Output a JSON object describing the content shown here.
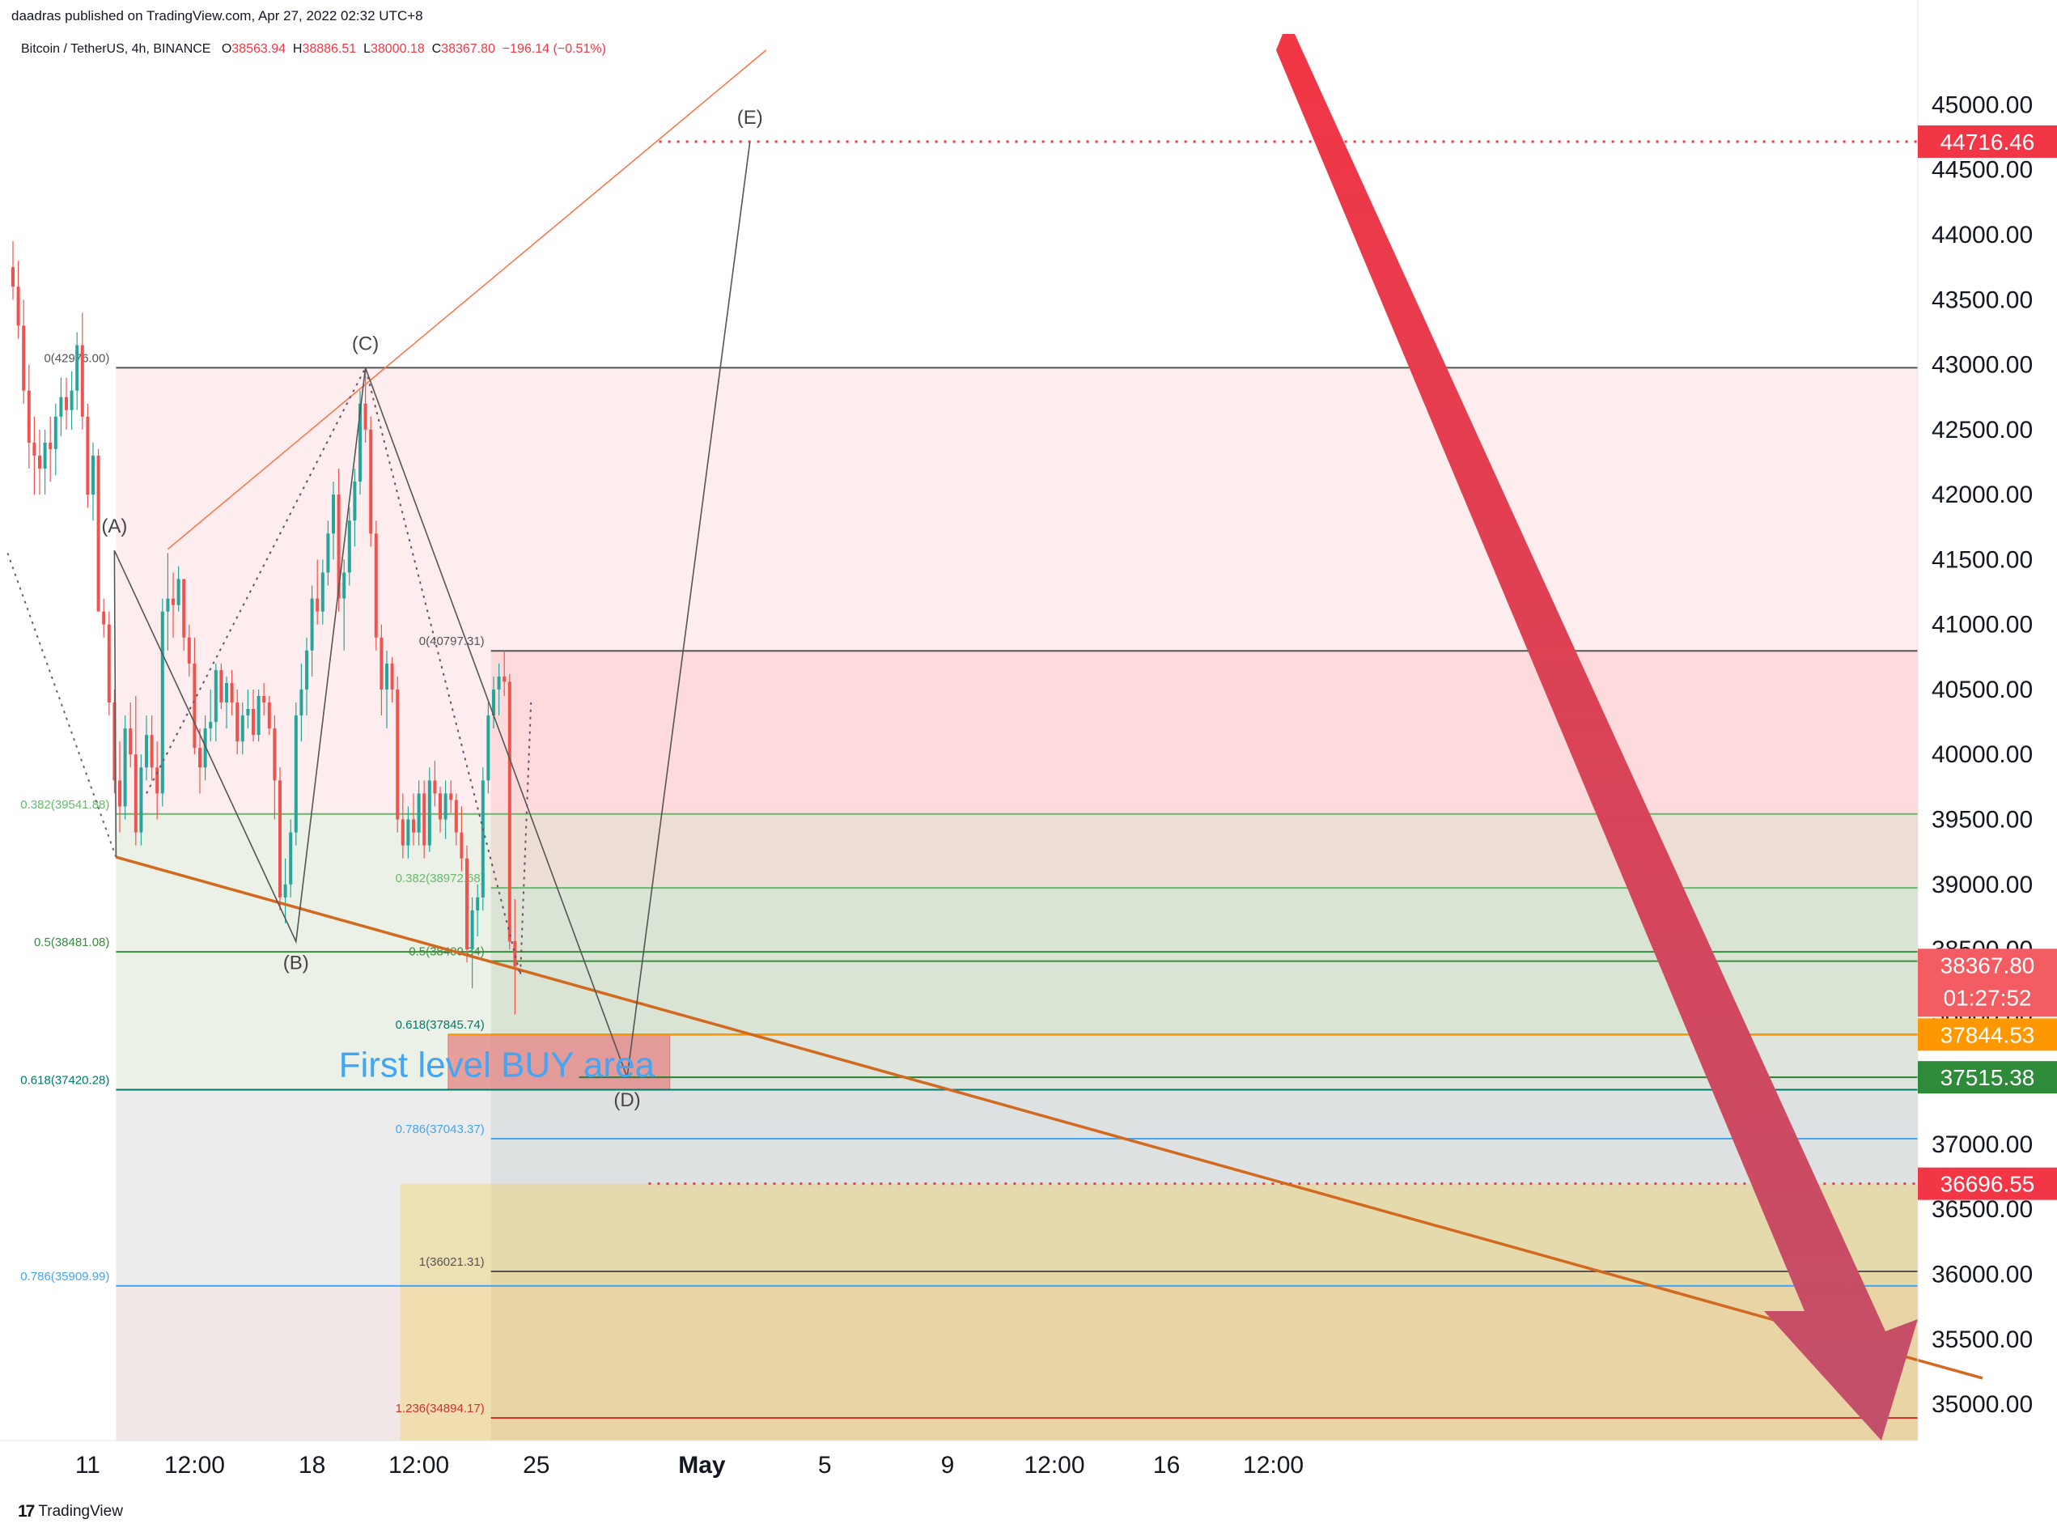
{
  "publisher": "daadras published on TradingView.com, Apr 27, 2022 02:32 UTC+8",
  "footer": {
    "logo": "17",
    "brand": "TradingView"
  },
  "chart_data": {
    "type": "candlestick",
    "symbol": "Bitcoin / TetherUS, 4h, BINANCE",
    "ohlc_label": {
      "o_label": "O",
      "o": "38563.94",
      "h_label": "H",
      "h": "38886.51",
      "l_label": "L",
      "l": "38000.18",
      "c_label": "C",
      "c": "38367.80",
      "change": "−196.14 (−0.51%)"
    },
    "y_ticks": [
      45000,
      44500,
      44000,
      43500,
      43000,
      42500,
      42000,
      41500,
      41000,
      40500,
      40000,
      39500,
      39000,
      38500,
      38000,
      37500,
      37000,
      36500,
      36000,
      35500,
      35000
    ],
    "y_tick_labels": [
      "45000.00",
      "44500.00",
      "44000.00",
      "43500.00",
      "43000.00",
      "42500.00",
      "42000.00",
      "41500.00",
      "41000.00",
      "40500.00",
      "40000.00",
      "39500.00",
      "39000.00",
      "38500.00",
      "38000.00",
      "37500.00",
      "37000.00",
      "36500.00",
      "36000.00",
      "35500.00",
      "35000.00"
    ],
    "ylim": [
      34720,
      45420
    ],
    "x_ticks": [
      {
        "label": "11",
        "slot": 14
      },
      {
        "label": "12:00",
        "slot": 34
      },
      {
        "label": "18",
        "slot": 56
      },
      {
        "label": "12:00",
        "slot": 76
      },
      {
        "label": "25",
        "slot": 98
      },
      {
        "label": "May",
        "slot": 129
      },
      {
        "label": "5",
        "slot": 152
      },
      {
        "label": "9",
        "slot": 175
      },
      {
        "label": "12:00",
        "slot": 195
      },
      {
        "label": "16",
        "slot": 216
      },
      {
        "label": "12:00",
        "slot": 236
      }
    ],
    "candles": [
      [
        43750,
        43950,
        43500,
        43600
      ],
      [
        43600,
        43800,
        43200,
        43300
      ],
      [
        43300,
        43500,
        42700,
        42800
      ],
      [
        42800,
        43000,
        42200,
        42400
      ],
      [
        42400,
        42600,
        42000,
        42300
      ],
      [
        42300,
        42500,
        42000,
        42200
      ],
      [
        42200,
        42500,
        42000,
        42400
      ],
      [
        42400,
        42600,
        42100,
        42350
      ],
      [
        42350,
        42700,
        42150,
        42600
      ],
      [
        42600,
        42900,
        42450,
        42750
      ],
      [
        42750,
        42900,
        42500,
        42650
      ],
      [
        42650,
        42950,
        42500,
        42800
      ],
      [
        42800,
        43250,
        42650,
        43150
      ],
      [
        43150,
        43400,
        42500,
        42600
      ],
      [
        42600,
        42700,
        41900,
        42000
      ],
      [
        42000,
        42400,
        41800,
        42300
      ],
      [
        42300,
        42350,
        41200,
        41100
      ],
      [
        41100,
        41200,
        40900,
        41000
      ],
      [
        41000,
        41100,
        40300,
        40400
      ],
      [
        40400,
        40500,
        39700,
        39800
      ],
      [
        39800,
        40100,
        39400,
        39600
      ],
      [
        39600,
        40300,
        39500,
        40200
      ],
      [
        40200,
        40400,
        39900,
        40000
      ],
      [
        40000,
        40450,
        39300,
        39400
      ],
      [
        39400,
        40000,
        39300,
        39900
      ],
      [
        39900,
        40300,
        39800,
        40150
      ],
      [
        40150,
        40300,
        39800,
        39900
      ],
      [
        39900,
        40100,
        39500,
        39700
      ],
      [
        39700,
        41200,
        39600,
        41100
      ],
      [
        41100,
        41550,
        40800,
        41200
      ],
      [
        41200,
        41400,
        40900,
        41150
      ],
      [
        41150,
        41450,
        41100,
        41350
      ],
      [
        41350,
        41350,
        40800,
        40900
      ],
      [
        40900,
        41000,
        40600,
        40700
      ],
      [
        40700,
        40900,
        40000,
        40050
      ],
      [
        40050,
        40200,
        39700,
        39900
      ],
      [
        39900,
        40300,
        39800,
        40200
      ],
      [
        40200,
        40500,
        40100,
        40250
      ],
      [
        40250,
        40700,
        40100,
        40650
      ],
      [
        40650,
        40700,
        40350,
        40400
      ],
      [
        40400,
        40600,
        40200,
        40550
      ],
      [
        40550,
        40650,
        40300,
        40400
      ],
      [
        40400,
        40500,
        40000,
        40100
      ],
      [
        40100,
        40400,
        40000,
        40300
      ],
      [
        40300,
        40500,
        40200,
        40350
      ],
      [
        40350,
        40500,
        40100,
        40150
      ],
      [
        40150,
        40500,
        40100,
        40450
      ],
      [
        40450,
        40550,
        40300,
        40400
      ],
      [
        40400,
        40450,
        40150,
        40200
      ],
      [
        40200,
        40300,
        39500,
        39800
      ],
      [
        39800,
        39900,
        38800,
        38900
      ],
      [
        38900,
        39200,
        38700,
        39000
      ],
      [
        39000,
        39500,
        38900,
        39400
      ],
      [
        39400,
        40400,
        39300,
        40300
      ],
      [
        40300,
        40700,
        40100,
        40500
      ],
      [
        40500,
        40900,
        40300,
        40800
      ],
      [
        40800,
        41300,
        40600,
        41200
      ],
      [
        41200,
        41500,
        41000,
        41100
      ],
      [
        41100,
        41500,
        41000,
        41400
      ],
      [
        41400,
        41800,
        41300,
        41700
      ],
      [
        41700,
        42100,
        41500,
        42000
      ],
      [
        42000,
        42200,
        41100,
        41200
      ],
      [
        41200,
        41500,
        40800,
        41400
      ],
      [
        41400,
        41900,
        41300,
        41800
      ],
      [
        41800,
        42200,
        41600,
        42100
      ],
      [
        42100,
        42800,
        42000,
        42700
      ],
      [
        42700,
        42970,
        42400,
        42500
      ],
      [
        42500,
        42600,
        41600,
        41700
      ],
      [
        41700,
        41800,
        40800,
        40900
      ],
      [
        40900,
        41000,
        40300,
        40500
      ],
      [
        40500,
        40800,
        40200,
        40700
      ],
      [
        40700,
        40750,
        40400,
        40500
      ],
      [
        40500,
        40600,
        39400,
        39500
      ],
      [
        39500,
        39700,
        39200,
        39300
      ],
      [
        39300,
        39600,
        39200,
        39500
      ],
      [
        39500,
        39700,
        39300,
        39400
      ],
      [
        39400,
        39800,
        39300,
        39700
      ],
      [
        39700,
        39800,
        39200,
        39300
      ],
      [
        39300,
        39900,
        39250,
        39800
      ],
      [
        39800,
        39950,
        39600,
        39700
      ],
      [
        39700,
        39750,
        39400,
        39500
      ],
      [
        39500,
        39800,
        39350,
        39700
      ],
      [
        39700,
        39800,
        39550,
        39650
      ],
      [
        39650,
        39700,
        39300,
        39400
      ],
      [
        39400,
        39600,
        39100,
        39200
      ],
      [
        39200,
        39300,
        38400,
        38500
      ],
      [
        38500,
        38900,
        38200,
        38800
      ],
      [
        38800,
        39000,
        38600,
        38900
      ],
      [
        38900,
        39900,
        38800,
        39800
      ],
      [
        39800,
        40400,
        39700,
        40300
      ],
      [
        40300,
        40600,
        40200,
        40500
      ],
      [
        40500,
        40700,
        40300,
        40600
      ],
      [
        40600,
        40797,
        40450,
        40560
      ],
      [
        40560,
        40620,
        38500,
        38560
      ],
      [
        38564,
        38887,
        38000,
        38368
      ]
    ]
  },
  "fibs": {
    "left": [
      {
        "label": "0(42976.00)",
        "price": 42976
      },
      {
        "label": "0.382(39541.88)",
        "price": 39541.88
      },
      {
        "label": "0.5(38481.08)",
        "price": 38481.08
      },
      {
        "label": "0.618(37420.28)",
        "price": 37420.28
      },
      {
        "label": "0.786(35909.99)",
        "price": 35909.99
      }
    ],
    "right": [
      {
        "label": "0(40797.31)",
        "price": 40797.31
      },
      {
        "label": "0.382(38972.68)",
        "price": 38972.68
      },
      {
        "label": "0.5(38409.34)",
        "price": 38409.34
      },
      {
        "label": "0.618(37845.74)",
        "price": 37845.74
      },
      {
        "label": "0.786(37043.37)",
        "price": 37043.37
      },
      {
        "label": "1(36021.31)",
        "price": 36021.31
      },
      {
        "label": "1.236(34894.17)",
        "price": 34894.17
      }
    ]
  },
  "waves": [
    {
      "label": "(A)",
      "slot": 19,
      "price": 41570
    },
    {
      "label": "(B)",
      "slot": 53,
      "price": 38560
    },
    {
      "label": "(C)",
      "slot": 66,
      "price": 42976
    },
    {
      "label": "(D)",
      "slot": 115,
      "price": 37515
    },
    {
      "label": "(E)",
      "slot": 138,
      "price": 44716
    }
  ],
  "annotation": {
    "text": "First level BUY area"
  },
  "price_tags": [
    {
      "label": "44716.46",
      "price": 44716.46,
      "color": "#f23645"
    },
    {
      "label": "38367.80",
      "sub": "01:27:52",
      "price": 38367.8,
      "color": "#f25c62"
    },
    {
      "label": "37844.53",
      "price": 37844.53,
      "color": "#ff9800"
    },
    {
      "label": "37515.38",
      "price": 37515.38,
      "color": "#2e8b3a"
    },
    {
      "label": "36696.55",
      "price": 36696.55,
      "color": "#f23645"
    }
  ],
  "colors": {
    "up": "#26a69a",
    "down": "#ef5350",
    "arrow": "#f23645",
    "trend": "#d2691e"
  }
}
